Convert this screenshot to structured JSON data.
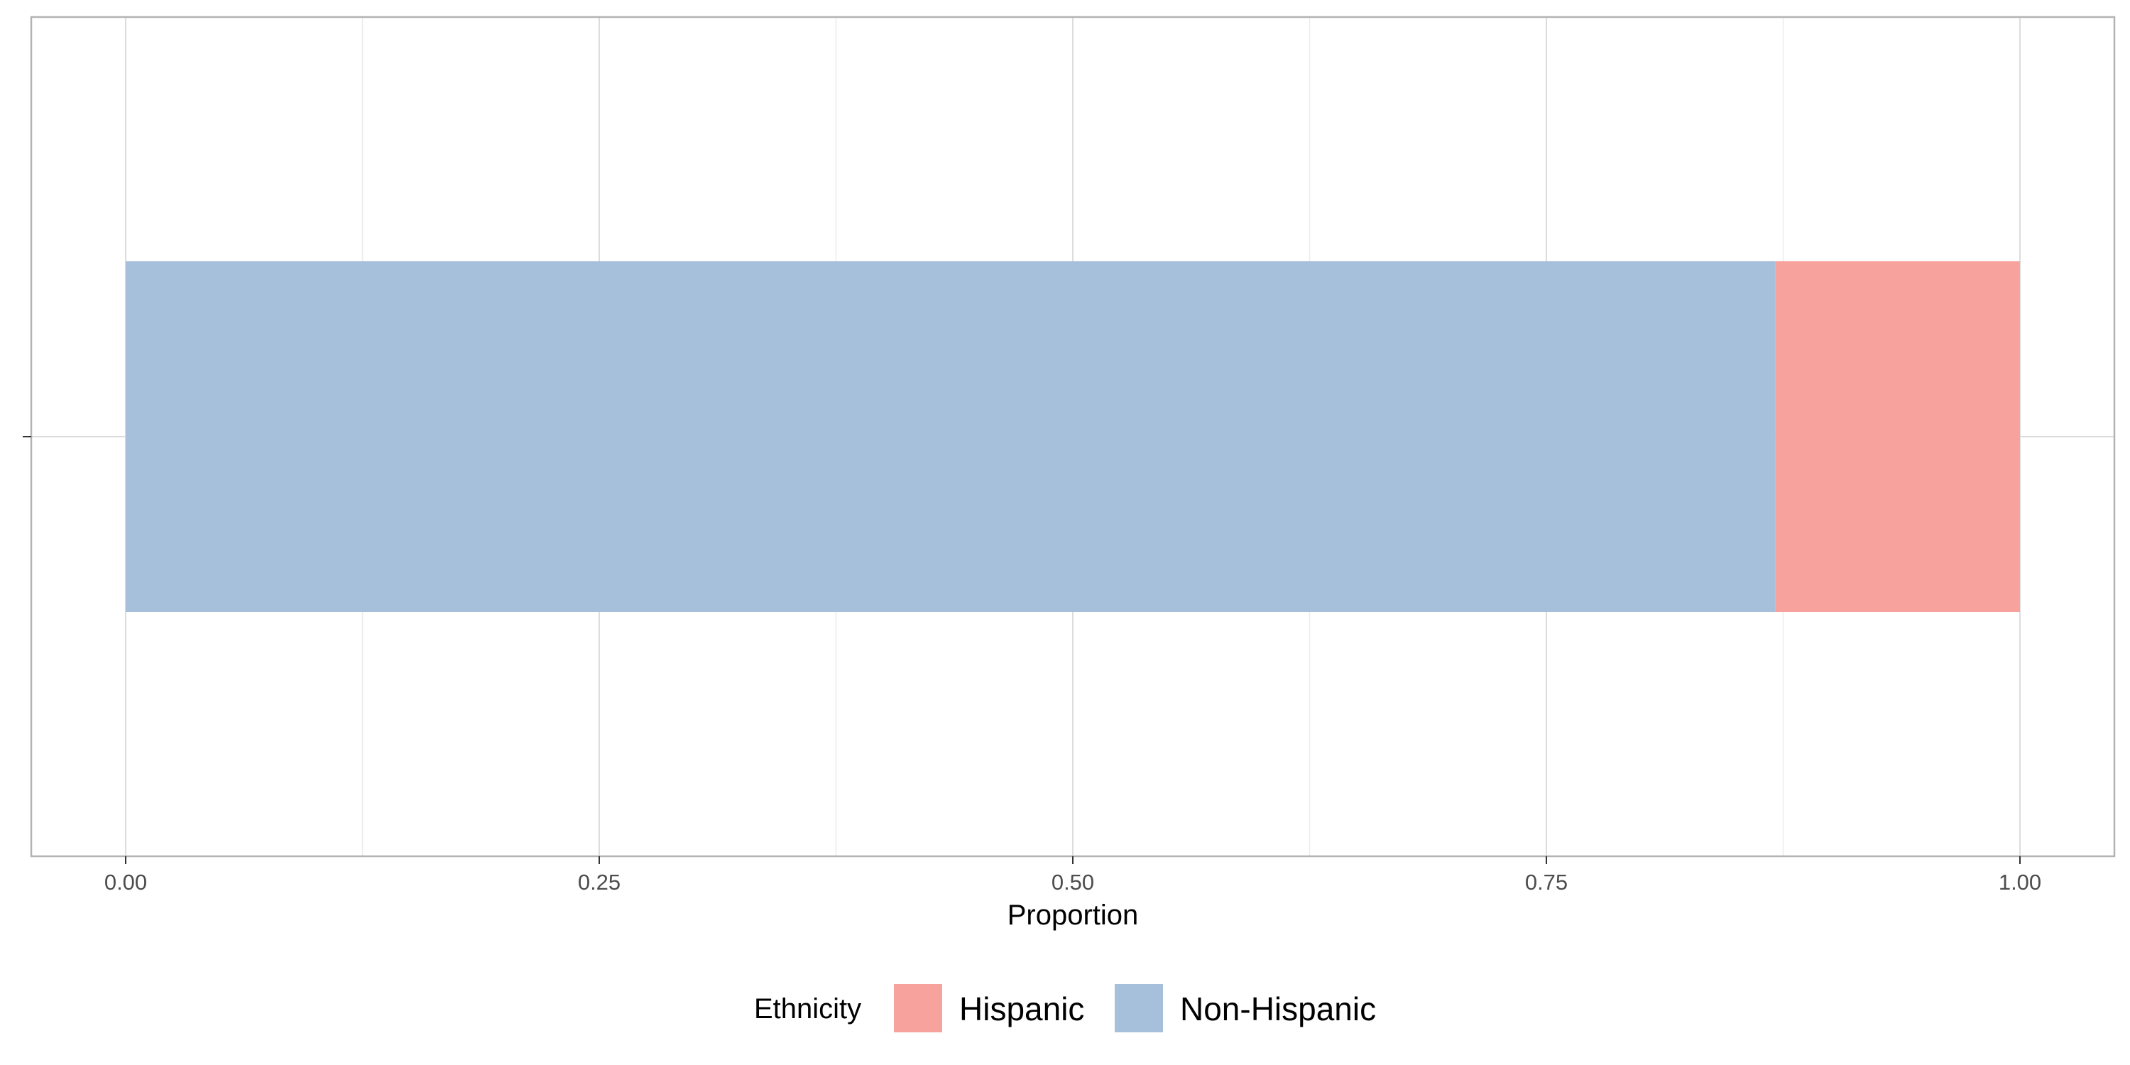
{
  "chart_data": {
    "type": "bar",
    "orientation": "horizontal",
    "stacked": true,
    "xlabel": "Proportion",
    "ylabel": "",
    "xlim": [
      0.0,
      1.0
    ],
    "x_ticks": [
      "0.00",
      "0.25",
      "0.50",
      "0.75",
      "1.00"
    ],
    "categories": [
      ""
    ],
    "series": [
      {
        "name": "Non-Hispanic",
        "values": [
          0.871
        ],
        "color": "#a6c0dc"
      },
      {
        "name": "Hispanic",
        "values": [
          0.129
        ],
        "color": "#f7a29c"
      }
    ],
    "legend": {
      "title": "Ethnicity",
      "position": "bottom",
      "items": [
        {
          "label": "Hispanic",
          "color": "#f7a29c"
        },
        {
          "label": "Non-Hispanic",
          "color": "#a6c0dc"
        }
      ]
    },
    "grid": true
  }
}
